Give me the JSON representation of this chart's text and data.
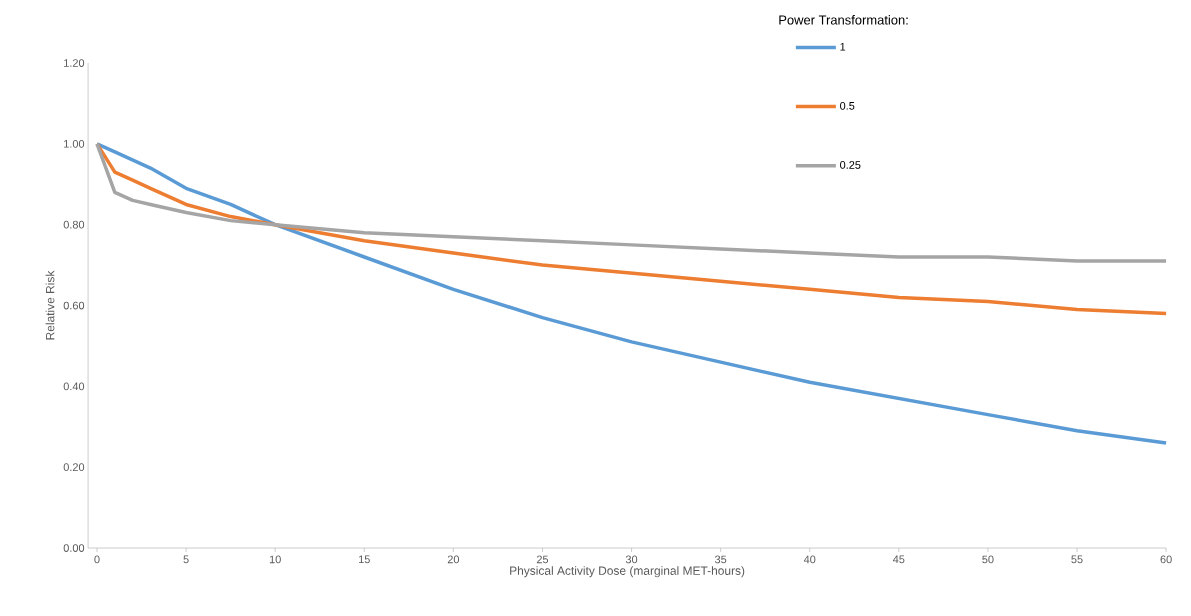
{
  "chart_data": {
    "type": "line",
    "xlabel": "Physical Activity Dose (marginal MET-hours)",
    "ylabel": "Relative Risk",
    "legend_title": "Power Transformation:",
    "legend": "top right",
    "grid": false,
    "marker": "none",
    "line_style": "solid",
    "x": [
      0,
      1,
      2,
      3,
      5,
      7.5,
      10,
      15,
      20,
      25,
      30,
      35,
      40,
      45,
      50,
      55,
      60
    ],
    "xlim": [
      -0.5,
      60
    ],
    "ylim": [
      0,
      1.2
    ],
    "xticks": [
      0,
      5,
      10,
      15,
      20,
      25,
      30,
      35,
      40,
      45,
      50,
      55,
      60
    ],
    "yticks": [
      {
        "value": 0,
        "label": "0.00"
      },
      {
        "value": 0.2,
        "label": "0.20"
      },
      {
        "value": 0.4,
        "label": "0.40"
      },
      {
        "value": 0.6,
        "label": "0.60"
      },
      {
        "value": 0.8,
        "label": "0.80"
      },
      {
        "value": 1.0,
        "label": "1.00"
      },
      {
        "value": 1.2,
        "label": "1.20"
      }
    ],
    "series": [
      {
        "name": "1",
        "color": "#5b9bd5",
        "values": [
          1.0,
          0.98,
          0.96,
          0.94,
          0.89,
          0.85,
          0.8,
          0.72,
          0.64,
          0.57,
          0.51,
          0.46,
          0.41,
          0.37,
          0.33,
          0.29,
          0.26
        ]
      },
      {
        "name": "0.5",
        "color": "#ed7d31",
        "values": [
          1.0,
          0.93,
          0.91,
          0.89,
          0.85,
          0.82,
          0.8,
          0.76,
          0.73,
          0.7,
          0.68,
          0.66,
          0.64,
          0.62,
          0.61,
          0.59,
          0.58
        ]
      },
      {
        "name": "0.25",
        "color": "#a5a5a5",
        "values": [
          1.0,
          0.88,
          0.86,
          0.85,
          0.83,
          0.81,
          0.8,
          0.78,
          0.77,
          0.76,
          0.75,
          0.74,
          0.73,
          0.72,
          0.72,
          0.71,
          0.71
        ]
      }
    ]
  }
}
